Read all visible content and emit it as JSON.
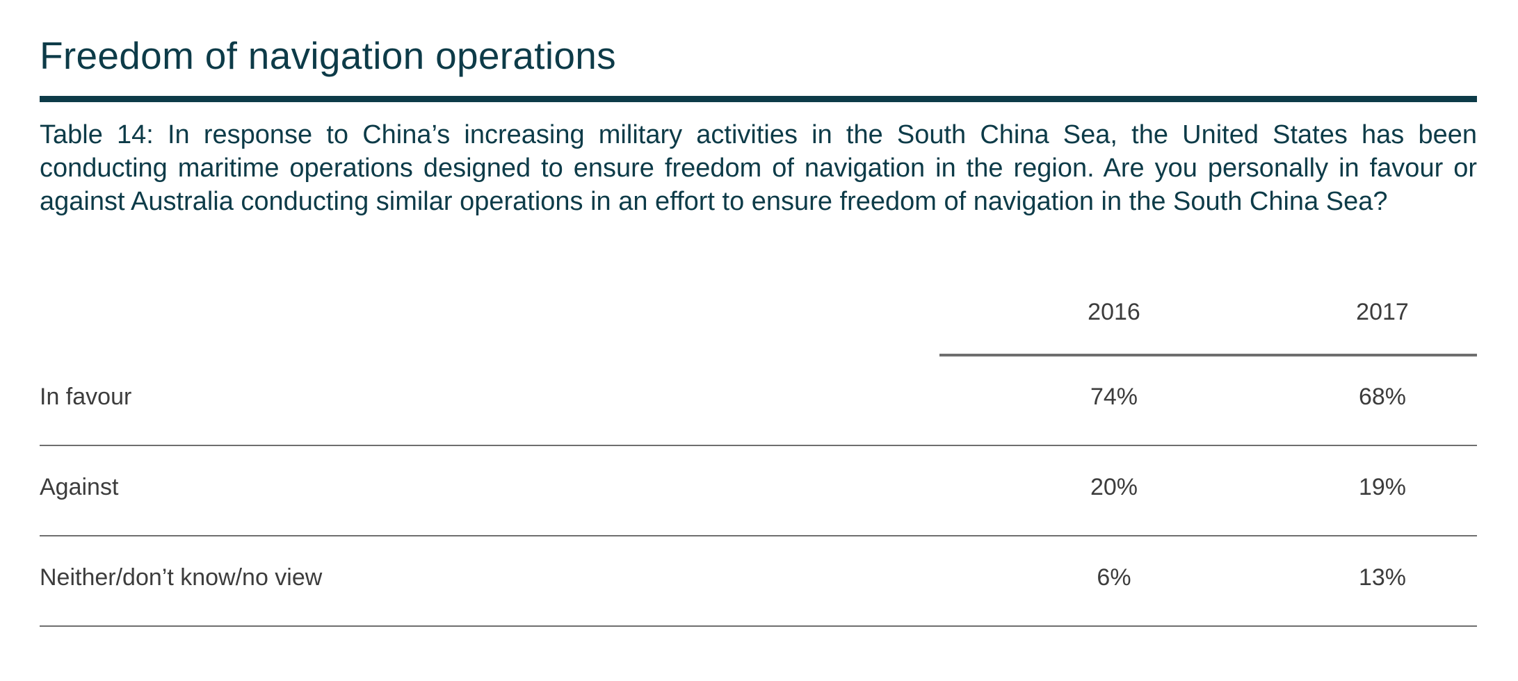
{
  "heading": "Freedom of navigation operations",
  "caption": "Table 14: In response to China’s increasing military activities in the South China Sea, the United States has been conducting maritime operations designed to ensure freedom of navigation in the region. Are you personally in favour or against Australia conducting similar operations in an effort to ensure freedom of navigation in the South China Sea?",
  "colors": {
    "heading": "#0d3b48",
    "body_text": "#3c3c3c",
    "rules": "#6e6e6e"
  },
  "table": {
    "columns": [
      "2016",
      "2017"
    ],
    "rows": [
      {
        "label": "In favour",
        "values": [
          "74%",
          "68%"
        ]
      },
      {
        "label": "Against",
        "values": [
          "20%",
          "19%"
        ]
      },
      {
        "label": "Neither/don’t know/no view",
        "values": [
          "6%",
          "13%"
        ]
      }
    ]
  }
}
